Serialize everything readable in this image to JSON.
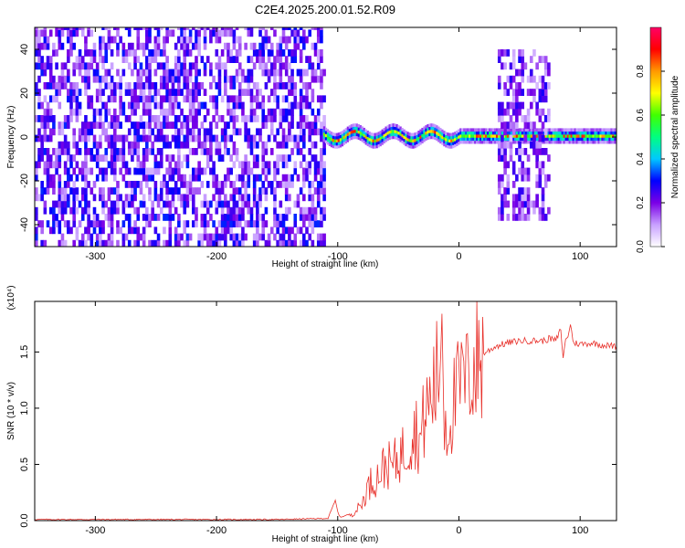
{
  "title": "C2E4.2025.200.01.52.R09",
  "chart_data": [
    {
      "type": "heatmap",
      "xlabel": "Height of straight line (km)",
      "ylabel": "Frequency (Hz)",
      "xlim": [
        -350,
        130
      ],
      "ylim": [
        -50,
        50
      ],
      "xticks": [
        -300,
        -200,
        -100,
        0,
        100
      ],
      "yticks": [
        -40,
        -20,
        0,
        20,
        40
      ],
      "xtick_labels": [
        "-300",
        "-200",
        "-100",
        "0",
        "100"
      ],
      "ytick_labels": [
        "-40",
        "-20",
        "0",
        "20",
        "40"
      ],
      "colorbar": {
        "label": "Normalized spectral amplitude",
        "range": [
          0,
          1
        ],
        "ticks": [
          0.0,
          0.2,
          0.4,
          0.6,
          0.8
        ],
        "tick_labels": [
          "0.0",
          "0.2",
          "0.4",
          "0.6",
          "0.8"
        ],
        "colors": [
          "#ffffff",
          "#c8a0ff",
          "#7a00e6",
          "#0000ff",
          "#00c8ff",
          "#00ff80",
          "#40ff00",
          "#ffff00",
          "#ff9900",
          "#ff0000",
          "#ff0066"
        ]
      },
      "regions": [
        {
          "x": [
            -350,
            -112
          ],
          "y": [
            -50,
            50
          ],
          "intensity": 0.2,
          "pattern": "noise"
        },
        {
          "x": [
            -112,
            130
          ],
          "y": [
            -5,
            5
          ],
          "intensity": 0.55,
          "pattern": "signal-band",
          "center_freq_hz": 0.5
        },
        {
          "x": [
            32,
            75
          ],
          "y": [
            -38,
            40
          ],
          "intensity": 0.18,
          "pattern": "noise"
        }
      ]
    },
    {
      "type": "line",
      "xlabel": "Height of straight line (km)",
      "ylabel": "SNR (10 * v/v)",
      "y_multiplier": "(x10⁴)",
      "xlim": [
        -350,
        130
      ],
      "ylim": [
        0,
        1.95
      ],
      "xticks": [
        -300,
        -200,
        -100,
        0,
        100
      ],
      "yticks": [
        0.0,
        0.5,
        1.0,
        1.5
      ],
      "xtick_labels": [
        "-300",
        "-200",
        "-100",
        "0",
        "100"
      ],
      "ytick_labels": [
        "0.0",
        "0.5",
        "1.0",
        "1.5"
      ],
      "series": [
        {
          "color": "#e8302a",
          "x": [
            -350,
            -250,
            -150,
            -108,
            -102,
            -100,
            -98,
            -95,
            -92,
            -88,
            -84,
            -80,
            -76,
            -72,
            -68,
            -64,
            -60,
            -56,
            -52,
            -48,
            -44,
            -40,
            -36,
            -32,
            -28,
            -24,
            -20,
            -16,
            -14,
            -12,
            -10,
            -8,
            -6,
            -4,
            -2,
            0,
            2,
            4,
            6,
            8,
            10,
            14,
            18,
            22,
            26,
            30,
            40,
            50,
            60,
            70,
            75,
            80,
            84,
            86,
            88,
            90,
            92,
            94,
            96,
            100,
            110,
            120,
            130
          ],
          "y": [
            0.01,
            0.01,
            0.01,
            0.02,
            0.18,
            0.08,
            0.03,
            0.04,
            0.05,
            0.06,
            0.1,
            0.15,
            0.28,
            0.35,
            0.38,
            0.45,
            0.5,
            0.48,
            0.52,
            0.6,
            0.62,
            0.75,
            0.82,
            0.7,
            0.95,
            1.05,
            1.2,
            1.35,
            1.95,
            0.95,
            0.85,
            0.9,
            1.0,
            1.05,
            1.1,
            1.15,
            1.2,
            1.25,
            1.2,
            1.3,
            1.35,
            1.4,
            1.45,
            1.5,
            1.52,
            1.55,
            1.58,
            1.6,
            1.6,
            1.6,
            1.62,
            1.6,
            1.7,
            1.45,
            1.6,
            1.65,
            1.75,
            1.6,
            1.58,
            1.57,
            1.58,
            1.56,
            1.55
          ]
        }
      ]
    }
  ]
}
